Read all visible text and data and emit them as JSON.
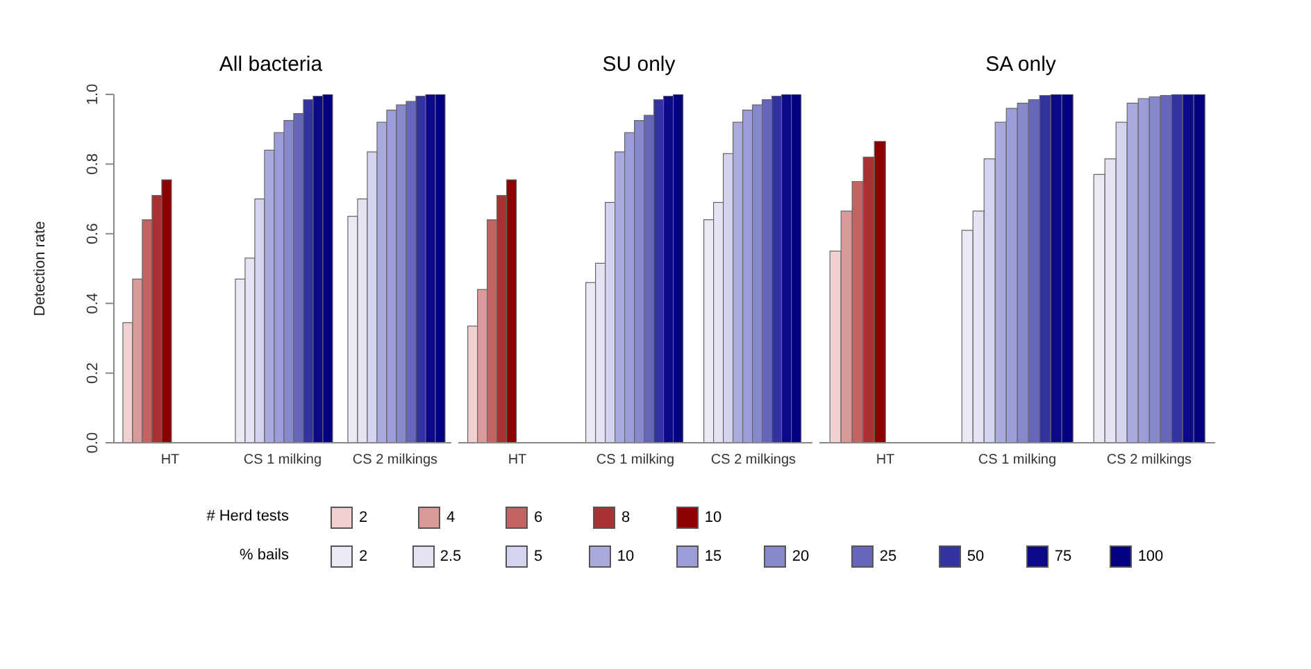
{
  "chart_data": [
    {
      "type": "bar",
      "title": "All bacteria",
      "ylabel": "Detection rate",
      "categories": [
        "HT",
        "CS 1 milking",
        "CS 2 milkings"
      ],
      "ylim": [
        0,
        1
      ],
      "yticks": [
        {
          "value": 0,
          "label": "0.0"
        },
        0.2,
        0.4,
        0.6,
        0.8,
        {
          "value": 1,
          "label": "1.0"
        }
      ],
      "grid": false,
      "legend": "bottom",
      "legend_title": "# Herd tests",
      "annotations": [
        "% bails"
      ],
      "series": [
        {
          "name": "2",
          "color": "#f0d0d0",
          "values": [
            0.345,
            null,
            null
          ]
        },
        {
          "name": "4",
          "color": "#d99a9a",
          "values": [
            0.47,
            null,
            null
          ]
        },
        {
          "name": "6",
          "color": "#c26464",
          "values": [
            0.64,
            null,
            null
          ]
        },
        {
          "name": "8",
          "color": "#a83232",
          "values": [
            0.71,
            null,
            null
          ]
        },
        {
          "name": "10",
          "color": "#8b0000",
          "values": [
            0.755,
            null,
            null
          ]
        },
        {
          "name": "2",
          "color": "#eaeaf5",
          "values": [
            null,
            0.47,
            0.65
          ]
        },
        {
          "name": "2.5",
          "color": "#e4e4f4",
          "values": [
            null,
            0.53,
            0.7
          ]
        },
        {
          "name": "5",
          "color": "#d4d4f0",
          "values": [
            null,
            0.7,
            0.835
          ]
        },
        {
          "name": "10",
          "color": "#aaaadc",
          "values": [
            null,
            0.84,
            0.92
          ]
        },
        {
          "name": "15",
          "color": "#9c9cd8",
          "values": [
            null,
            0.89,
            0.955
          ]
        },
        {
          "name": "20",
          "color": "#8888cc",
          "values": [
            null,
            0.925,
            0.97
          ]
        },
        {
          "name": "25",
          "color": "#6666bb",
          "values": [
            null,
            0.945,
            0.98
          ]
        },
        {
          "name": "50",
          "color": "#3333a0",
          "values": [
            null,
            0.985,
            0.995
          ]
        },
        {
          "name": "75",
          "color": "#0a0a88",
          "values": [
            null,
            0.995,
            1.0
          ]
        },
        {
          "name": "100",
          "color": "#000080",
          "values": [
            null,
            1.0,
            1.0
          ]
        }
      ]
    },
    {
      "type": "bar",
      "title": "SU only",
      "categories": [
        "HT",
        "CS 1 milking",
        "CS 2 milkings"
      ],
      "ylim": [
        0,
        1
      ],
      "tick_labels": "x",
      "grid": false,
      "series": [
        {
          "color": "#f0d0d0",
          "values": [
            0.335,
            null,
            null
          ]
        },
        {
          "color": "#d99a9a",
          "values": [
            0.44,
            null,
            null
          ]
        },
        {
          "color": "#c26464",
          "values": [
            0.64,
            null,
            null
          ]
        },
        {
          "color": "#a83232",
          "values": [
            0.71,
            null,
            null
          ]
        },
        {
          "color": "#8b0000",
          "values": [
            0.755,
            null,
            null
          ]
        },
        {
          "color": "#eaeaf5",
          "values": [
            null,
            0.46,
            0.64
          ]
        },
        {
          "color": "#e4e4f4",
          "values": [
            null,
            0.515,
            0.69
          ]
        },
        {
          "color": "#d4d4f0",
          "values": [
            null,
            0.69,
            0.83
          ]
        },
        {
          "color": "#aaaadc",
          "values": [
            null,
            0.835,
            0.92
          ]
        },
        {
          "color": "#9c9cd8",
          "values": [
            null,
            0.89,
            0.955
          ]
        },
        {
          "color": "#8888cc",
          "values": [
            null,
            0.925,
            0.97
          ]
        },
        {
          "color": "#6666bb",
          "values": [
            null,
            0.94,
            0.985
          ]
        },
        {
          "color": "#3333a0",
          "values": [
            null,
            0.985,
            0.995
          ]
        },
        {
          "color": "#0a0a88",
          "values": [
            null,
            0.995,
            1.0
          ]
        },
        {
          "color": "#000080",
          "values": [
            null,
            1.0,
            1.0
          ]
        }
      ]
    },
    {
      "type": "bar",
      "title": "SA only",
      "categories": [
        "HT",
        "CS 1 milking",
        "CS 2 milkings"
      ],
      "ylim": [
        0,
        1
      ],
      "tick_labels": "x",
      "grid": false,
      "series": [
        {
          "color": "#f0d0d0",
          "values": [
            0.55,
            null,
            null
          ]
        },
        {
          "color": "#d99a9a",
          "values": [
            0.665,
            null,
            null
          ]
        },
        {
          "color": "#c26464",
          "values": [
            0.75,
            null,
            null
          ]
        },
        {
          "color": "#a83232",
          "values": [
            0.82,
            null,
            null
          ]
        },
        {
          "color": "#8b0000",
          "values": [
            0.865,
            null,
            null
          ]
        },
        {
          "color": "#eaeaf5",
          "values": [
            null,
            0.61,
            0.77
          ]
        },
        {
          "color": "#e4e4f4",
          "values": [
            null,
            0.665,
            0.815
          ]
        },
        {
          "color": "#d4d4f0",
          "values": [
            null,
            0.815,
            0.92
          ]
        },
        {
          "color": "#aaaadc",
          "values": [
            null,
            0.92,
            0.975
          ]
        },
        {
          "color": "#9c9cd8",
          "values": [
            null,
            0.96,
            0.988
          ]
        },
        {
          "color": "#8888cc",
          "values": [
            null,
            0.975,
            0.993
          ]
        },
        {
          "color": "#6666bb",
          "values": [
            null,
            0.985,
            0.997
          ]
        },
        {
          "color": "#3333a0",
          "values": [
            null,
            0.997,
            1.0
          ]
        },
        {
          "color": "#0a0a88",
          "values": [
            null,
            1.0,
            1.0
          ]
        },
        {
          "color": "#000080",
          "values": [
            null,
            1.0,
            1.0
          ]
        }
      ]
    }
  ]
}
